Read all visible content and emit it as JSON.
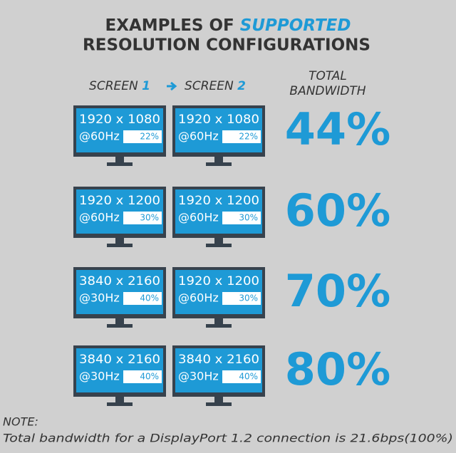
{
  "header": {
    "title_line1": {
      "text": "EXAMPLES OF",
      "highlight": "SUPPORTED"
    },
    "title_line2": "RESOLUTION CONFIGURATIONS"
  },
  "columns": {
    "screen1": {
      "label": "SCREEN",
      "number": "1"
    },
    "screen2": {
      "label": "SCREEN",
      "number": "2"
    },
    "total": [
      "TOTAL",
      "BANDWIDTH"
    ]
  },
  "rows": [
    {
      "screen1": {
        "resolution": "1920 x 1080",
        "refresh": "@60Hz",
        "share": "22%"
      },
      "screen2": {
        "resolution": "1920 x 1080",
        "refresh": "@60Hz",
        "share": "22%"
      },
      "total": "44%"
    },
    {
      "screen1": {
        "resolution": "1920 x 1200",
        "refresh": "@60Hz",
        "share": "30%"
      },
      "screen2": {
        "resolution": "1920 x 1200",
        "refresh": "@60Hz",
        "share": "30%"
      },
      "total": "60%"
    },
    {
      "screen1": {
        "resolution": "3840 x 2160",
        "refresh": "@30Hz",
        "share": "40%"
      },
      "screen2": {
        "resolution": "1920 x 1200",
        "refresh": "@60Hz",
        "share": "30%"
      },
      "total": "70%"
    },
    {
      "screen1": {
        "resolution": "3840 x 2160",
        "refresh": "@30Hz",
        "share": "40%"
      },
      "screen2": {
        "resolution": "3840 x 2160",
        "refresh": "@30Hz",
        "share": "40%"
      },
      "total": "80%"
    }
  ],
  "note": {
    "label": "NOTE:",
    "text": "Total bandwidth for a DisplayPort 1.2 connection is 21.6bps(100%)"
  }
}
